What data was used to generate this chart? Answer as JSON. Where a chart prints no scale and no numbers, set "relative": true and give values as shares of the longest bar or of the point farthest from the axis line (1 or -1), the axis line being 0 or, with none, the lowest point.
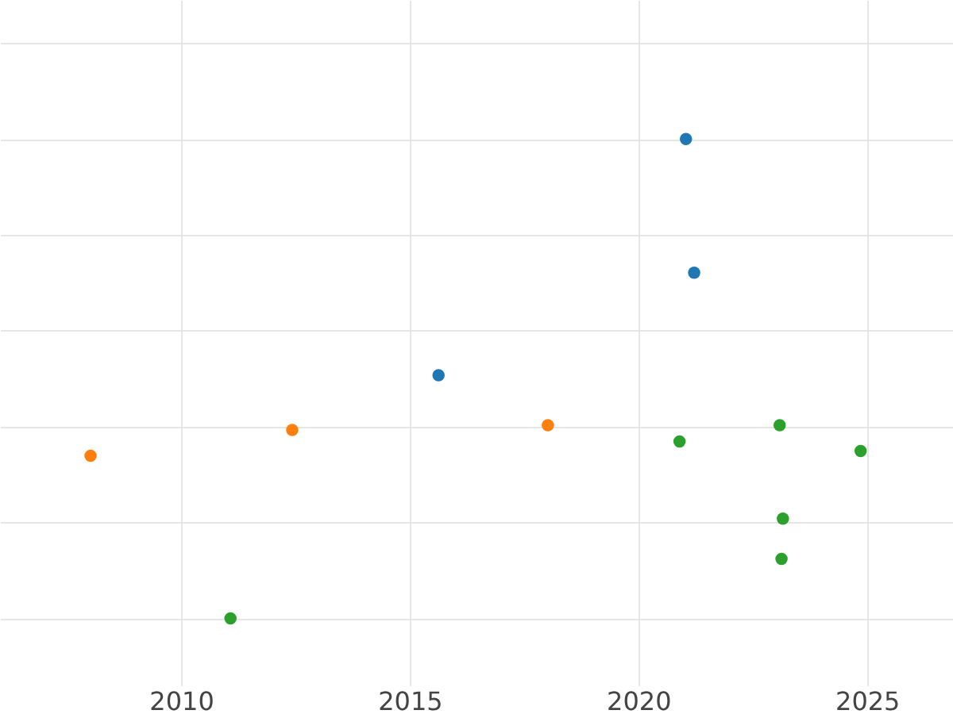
{
  "chart_data": {
    "type": "scatter",
    "relative": true,
    "grid": true,
    "legend": false,
    "xlim": [
      2006.04,
      2026.88
    ],
    "xticks": [
      2010,
      2015,
      2020,
      2025
    ],
    "series": [
      {
        "color": "#1f77b4",
        "x": [
          2021.04,
          2021.22,
          2015.63
        ],
        "values": [
          1,
          0.721,
          0.507
        ]
      },
      {
        "color": "#ff7f0e",
        "x": [
          2008.02,
          2012.43,
          2018.02
        ],
        "values": [
          0.339,
          0.393,
          0.403
        ]
      },
      {
        "color": "#2ca02c",
        "x": [
          2011.08,
          2020.9,
          2023.09,
          2024.86,
          2023.16,
          2023.13
        ],
        "values": [
          0,
          0.369,
          0.403,
          0.349,
          0.208,
          0.124
        ]
      }
    ]
  }
}
